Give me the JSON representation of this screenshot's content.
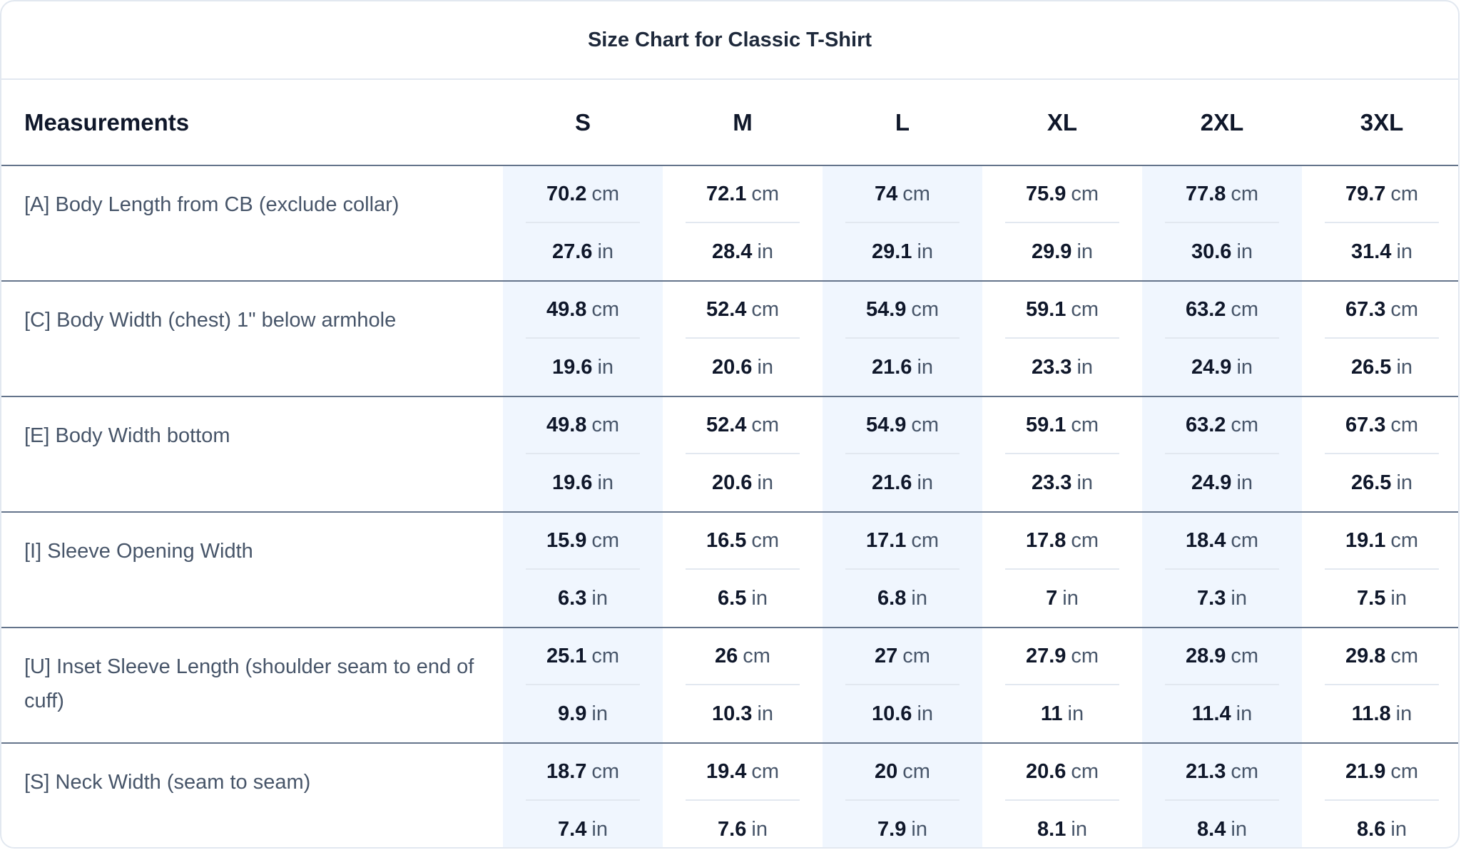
{
  "title": "Size Chart for Classic T-Shirt",
  "header": {
    "measurements_label": "Measurements",
    "sizes": [
      "S",
      "M",
      "L",
      "XL",
      "2XL",
      "3XL"
    ]
  },
  "units": {
    "cm": "cm",
    "in": "in"
  },
  "rows": [
    {
      "label": "[A] Body Length from CB (exclude collar)",
      "cm": [
        "70.2",
        "72.1",
        "74",
        "75.9",
        "77.8",
        "79.7"
      ],
      "in": [
        "27.6",
        "28.4",
        "29.1",
        "29.9",
        "30.6",
        "31.4"
      ]
    },
    {
      "label": "[C] Body Width (chest) 1\" below armhole",
      "cm": [
        "49.8",
        "52.4",
        "54.9",
        "59.1",
        "63.2",
        "67.3"
      ],
      "in": [
        "19.6",
        "20.6",
        "21.6",
        "23.3",
        "24.9",
        "26.5"
      ]
    },
    {
      "label": "[E] Body Width bottom",
      "cm": [
        "49.8",
        "52.4",
        "54.9",
        "59.1",
        "63.2",
        "67.3"
      ],
      "in": [
        "19.6",
        "20.6",
        "21.6",
        "23.3",
        "24.9",
        "26.5"
      ]
    },
    {
      "label": "[I] Sleeve Opening Width",
      "cm": [
        "15.9",
        "16.5",
        "17.1",
        "17.8",
        "18.4",
        "19.1"
      ],
      "in": [
        "6.3",
        "6.5",
        "6.8",
        "7",
        "7.3",
        "7.5"
      ]
    },
    {
      "label": "[U] Inset Sleeve Length (shoulder seam to end of cuff)",
      "cm": [
        "25.1",
        "26",
        "27",
        "27.9",
        "28.9",
        "29.8"
      ],
      "in": [
        "9.9",
        "10.3",
        "10.6",
        "11",
        "11.4",
        "11.8"
      ]
    },
    {
      "label": "[S] Neck Width (seam to seam)",
      "cm": [
        "18.7",
        "19.4",
        "20",
        "20.6",
        "21.3",
        "21.9"
      ],
      "in": [
        "7.4",
        "7.6",
        "7.9",
        "8.1",
        "8.4",
        "8.6"
      ]
    }
  ],
  "colors": {
    "shaded_column": "#f0f6fe",
    "row_divider": "#64748b",
    "light_divider": "#e2e8f0",
    "label_text": "#475569",
    "value_text": "#0f172a"
  }
}
